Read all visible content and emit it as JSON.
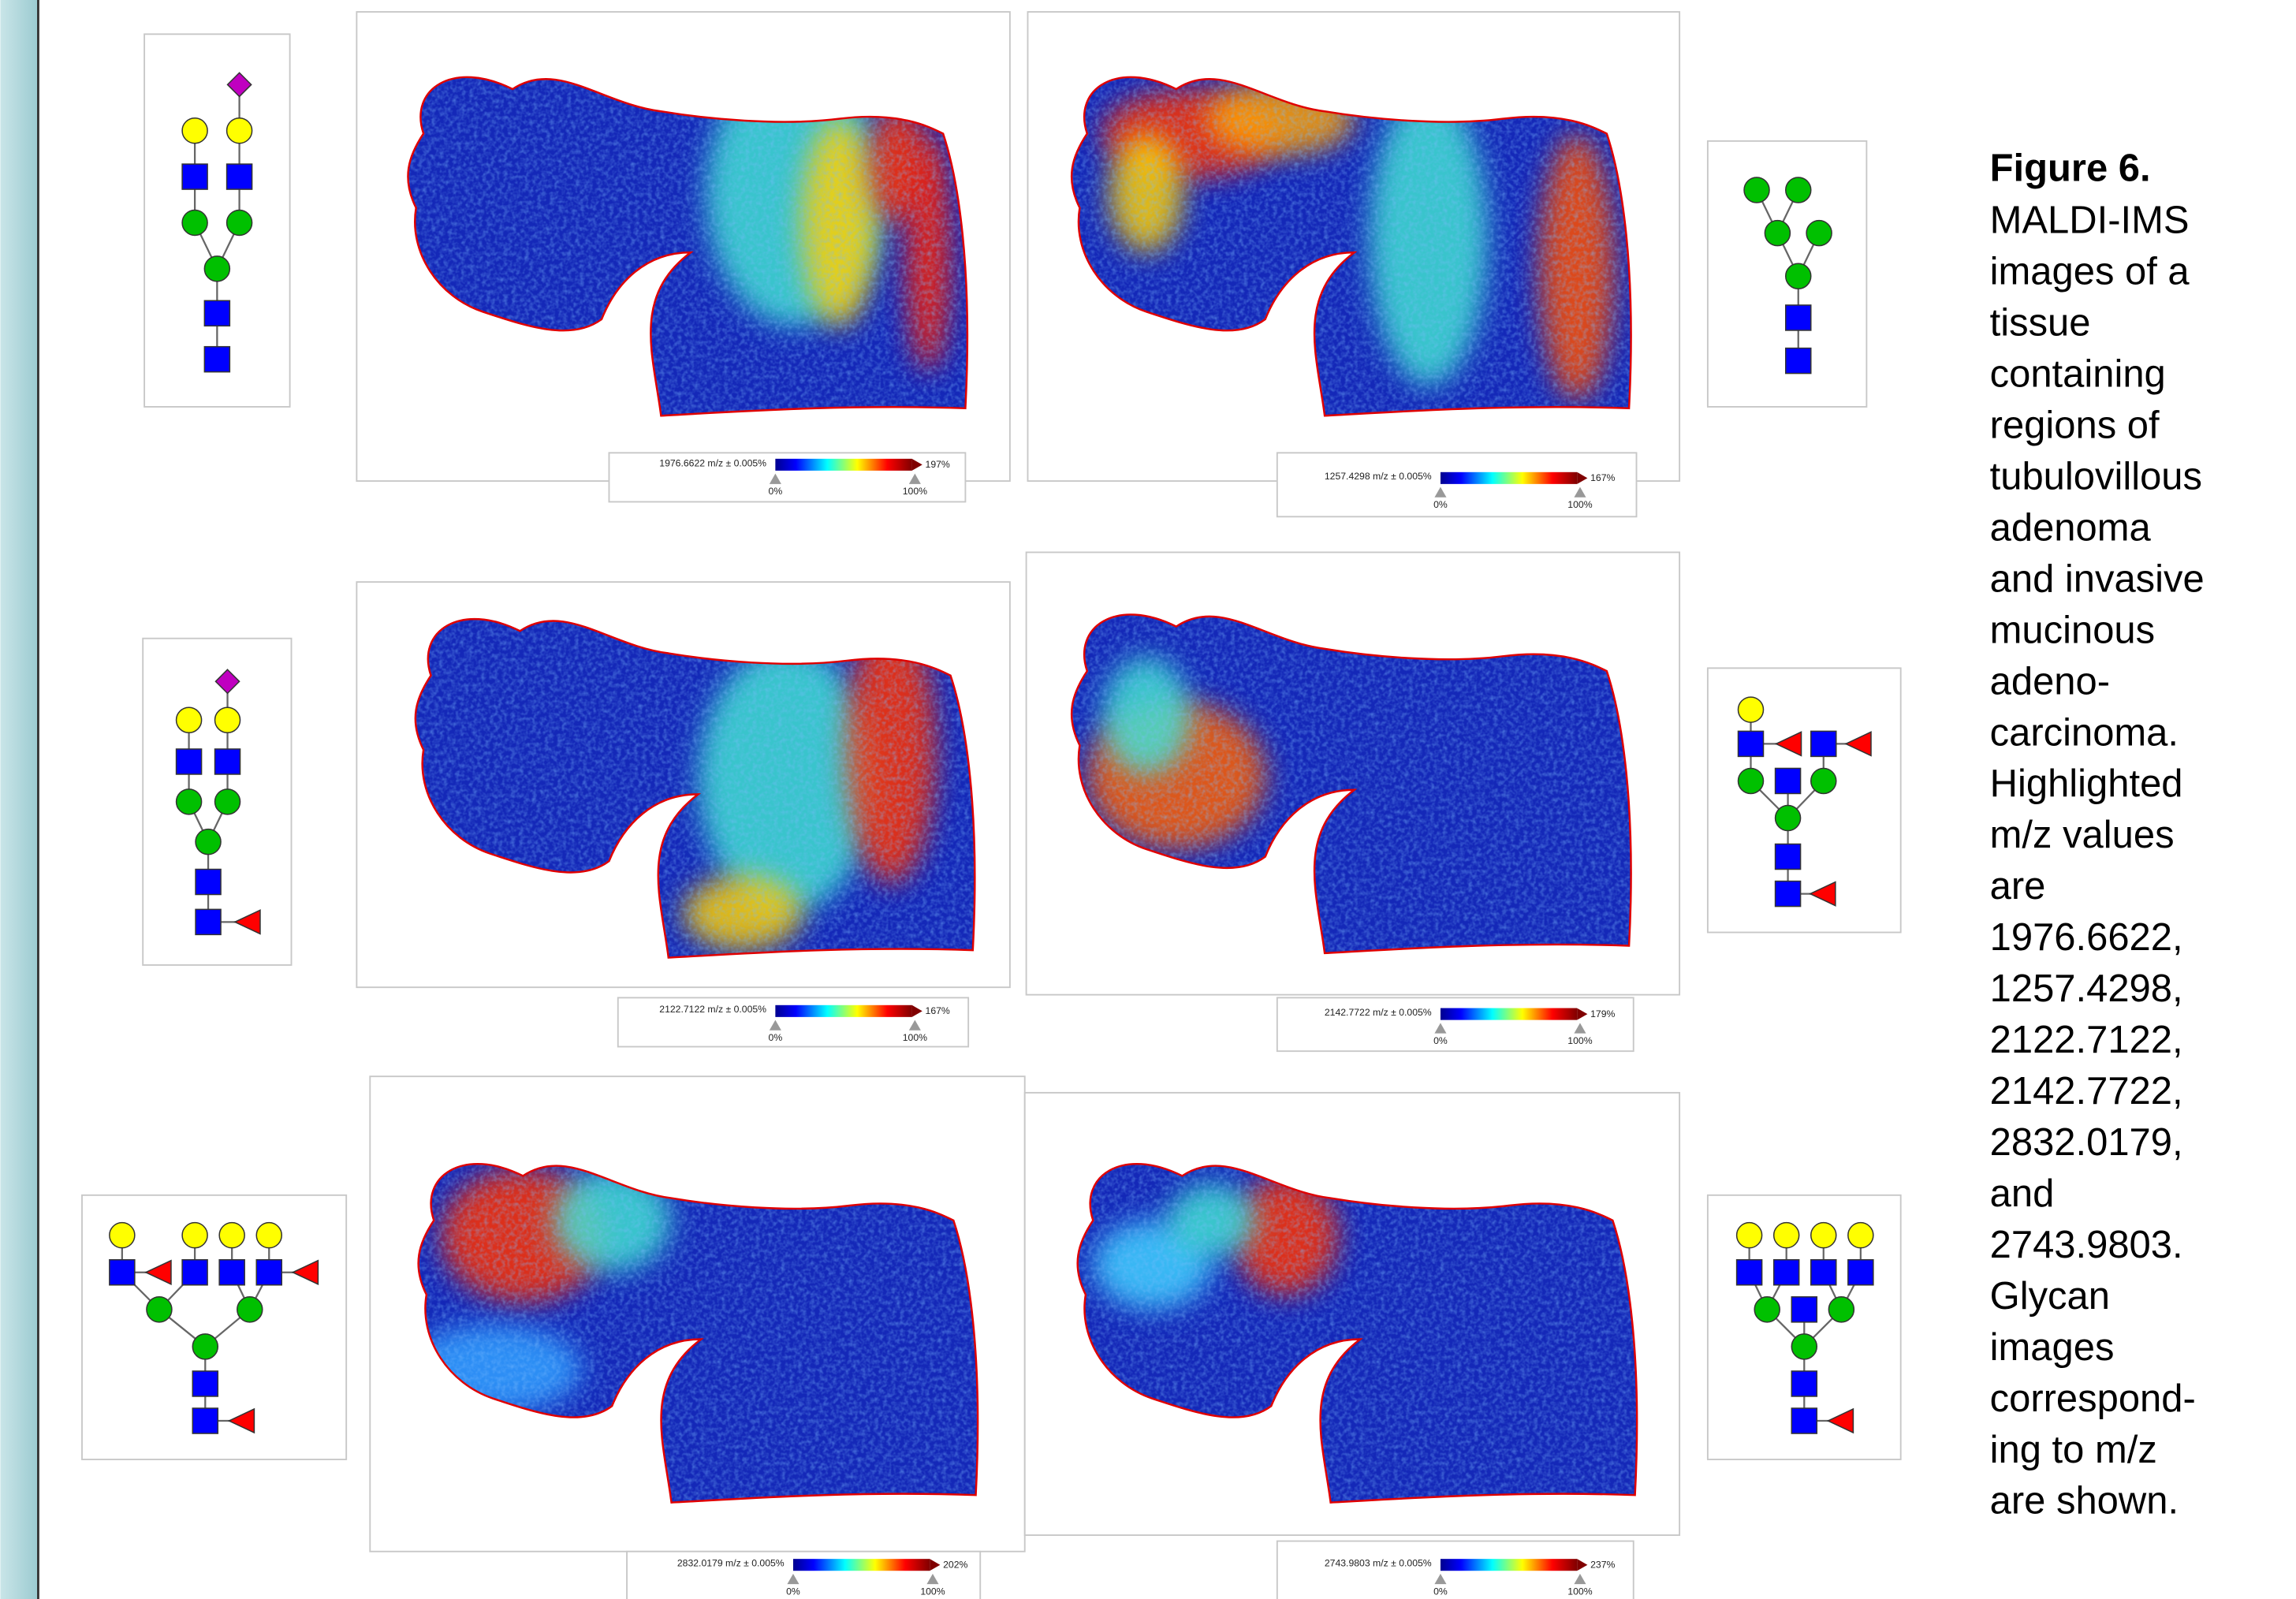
{
  "figure": {
    "panels": [
      {
        "mz_label": "1976.6622 m/z ± 0.005%",
        "min_label": "0%",
        "max_label": "100%",
        "overflow_label": "197%"
      },
      {
        "mz_label": "1257.4298 m/z ± 0.005%",
        "min_label": "0%",
        "max_label": "100%",
        "overflow_label": "167%"
      },
      {
        "mz_label": "2122.7122 m/z ± 0.005%",
        "min_label": "0%",
        "max_label": "100%",
        "overflow_label": "167%"
      },
      {
        "mz_label": "2142.7722 m/z ± 0.005%",
        "min_label": "0%",
        "max_label": "100%",
        "overflow_label": "179%"
      },
      {
        "mz_label": "2832.0179 m/z ± 0.005%",
        "min_label": "0%",
        "max_label": "100%",
        "overflow_label": "202%"
      },
      {
        "mz_label": "2743.9803 m/z ± 0.005%",
        "min_label": "0%",
        "max_label": "100%",
        "overflow_label": "237%"
      }
    ],
    "caption": {
      "title": "Figure 6.",
      "lines": [
        "MALDI-IMS",
        "images of a",
        "tissue",
        "containing",
        "regions of",
        "tubulovillous",
        "adenoma",
        "and invasive",
        "mucinous",
        "adeno-",
        "carcinoma.",
        "Highlighted",
        "m/z values",
        "are",
        "1976.6622,",
        "1257.4298,",
        "2122.7122,",
        "2142.7722,",
        "2832.0179,",
        "and",
        "2743.9803.",
        "Glycan",
        "images",
        "correspond-",
        "ing to m/z",
        "are shown."
      ]
    }
  }
}
